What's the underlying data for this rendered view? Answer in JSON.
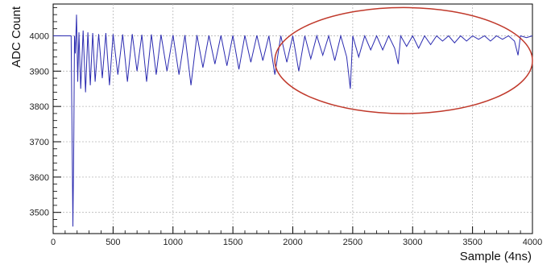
{
  "chart_data": {
    "type": "line",
    "title": "",
    "xlabel": "Sample (4ns)",
    "ylabel": "ADC Count",
    "xlim": [
      0,
      4000
    ],
    "ylim": [
      3440,
      4090
    ],
    "x_ticks": [
      0,
      500,
      1000,
      1500,
      2000,
      2500,
      3000,
      3500,
      4000
    ],
    "y_ticks": [
      3500,
      3600,
      3700,
      3800,
      3900,
      4000
    ],
    "x_tick_labels": [
      "0",
      "500",
      "1000",
      "1500",
      "2000",
      "2500",
      "3000",
      "3500",
      "4000"
    ],
    "y_tick_labels": [
      "3500",
      "3600",
      "3700",
      "3800",
      "3900",
      "4000"
    ],
    "grid": true,
    "line_color": "#2b2bb0",
    "annotation": {
      "shape": "ellipse",
      "color": "#c0392b",
      "x_range": [
        1850,
        4000
      ],
      "y_range": [
        3780,
        4080
      ]
    },
    "series": [
      {
        "name": "",
        "x": [
          0,
          150,
          165,
          172,
          178,
          185,
          195,
          205,
          215,
          230,
          250,
          270,
          290,
          310,
          330,
          350,
          380,
          410,
          440,
          470,
          500,
          540,
          580,
          620,
          660,
          700,
          740,
          780,
          820,
          860,
          900,
          950,
          1000,
          1050,
          1100,
          1150,
          1200,
          1250,
          1300,
          1350,
          1400,
          1450,
          1500,
          1550,
          1600,
          1650,
          1700,
          1750,
          1800,
          1850,
          1900,
          1950,
          2000,
          2050,
          2100,
          2150,
          2200,
          2250,
          2300,
          2350,
          2400,
          2450,
          2480,
          2500,
          2550,
          2600,
          2650,
          2700,
          2750,
          2800,
          2850,
          2880,
          2900,
          2950,
          3000,
          3050,
          3100,
          3150,
          3200,
          3250,
          3300,
          3350,
          3400,
          3450,
          3500,
          3550,
          3600,
          3650,
          3700,
          3750,
          3800,
          3850,
          3880,
          3900,
          3950,
          4000
        ],
        "y": [
          4000,
          4000,
          3460,
          3700,
          4000,
          3950,
          4060,
          3870,
          4010,
          3850,
          4015,
          3840,
          4010,
          3860,
          4008,
          3870,
          4005,
          3880,
          4008,
          3860,
          4005,
          3890,
          4004,
          3870,
          4005,
          3900,
          4003,
          3870,
          4004,
          3890,
          4003,
          3900,
          4002,
          3890,
          4002,
          3860,
          4002,
          3910,
          4001,
          3920,
          4001,
          3915,
          4001,
          3905,
          4001,
          3925,
          4001,
          3930,
          4000,
          3890,
          4000,
          3925,
          4000,
          3900,
          4000,
          3935,
          4000,
          3945,
          4000,
          3930,
          4000,
          3940,
          3850,
          4000,
          3940,
          4000,
          3960,
          4000,
          3960,
          4000,
          3965,
          3920,
          4000,
          3970,
          4000,
          3965,
          4000,
          3975,
          4000,
          3985,
          4000,
          3980,
          4000,
          3985,
          4000,
          3990,
          4000,
          3985,
          4000,
          3990,
          4000,
          3985,
          3945,
          4000,
          3995,
          4000
        ]
      }
    ]
  }
}
